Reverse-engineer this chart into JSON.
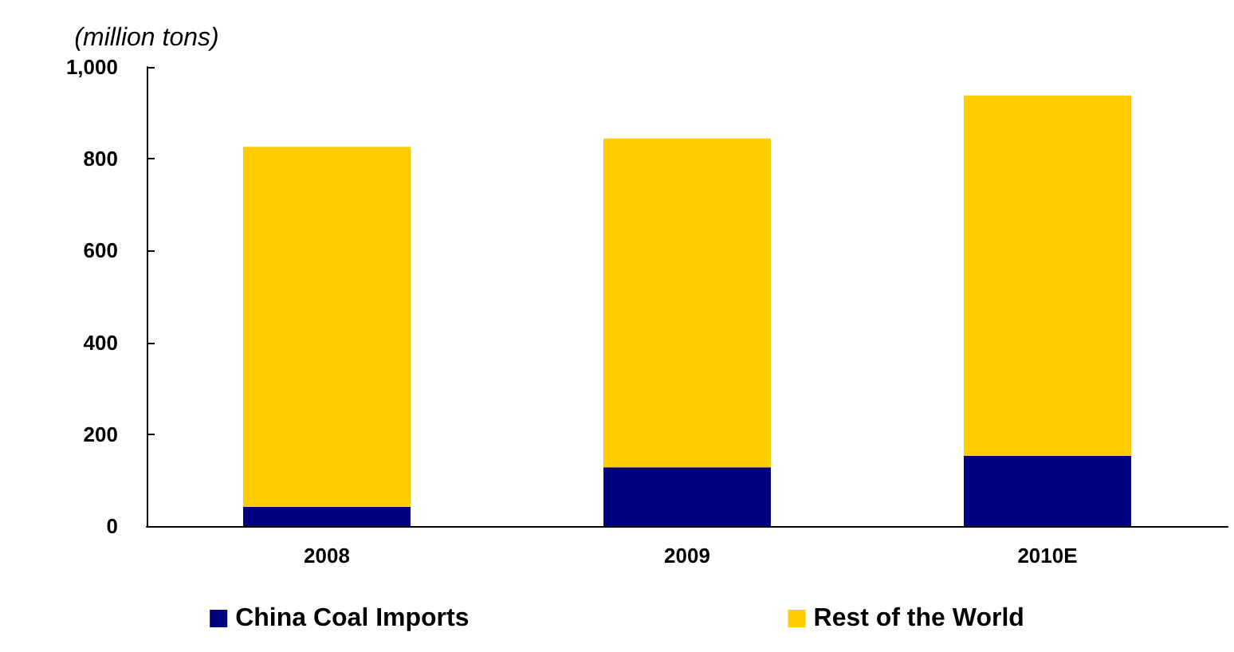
{
  "chart_data": {
    "type": "bar",
    "ylabel": "(million tons)",
    "categories": [
      "2008",
      "2009",
      "2010E"
    ],
    "stacked": true,
    "series": [
      {
        "name": "China Coal Imports",
        "color": "#000080",
        "values": [
          42,
          128,
          153
        ]
      },
      {
        "name": "Rest of the World",
        "color": "#ffcc00",
        "values": [
          784,
          716,
          785
        ]
      }
    ],
    "ylim": [
      0,
      1000
    ],
    "yticks": [
      0,
      200,
      400,
      600,
      800,
      {
        "value": 1000,
        "label": "1,000"
      }
    ],
    "grid": false,
    "legend": "bottom"
  }
}
